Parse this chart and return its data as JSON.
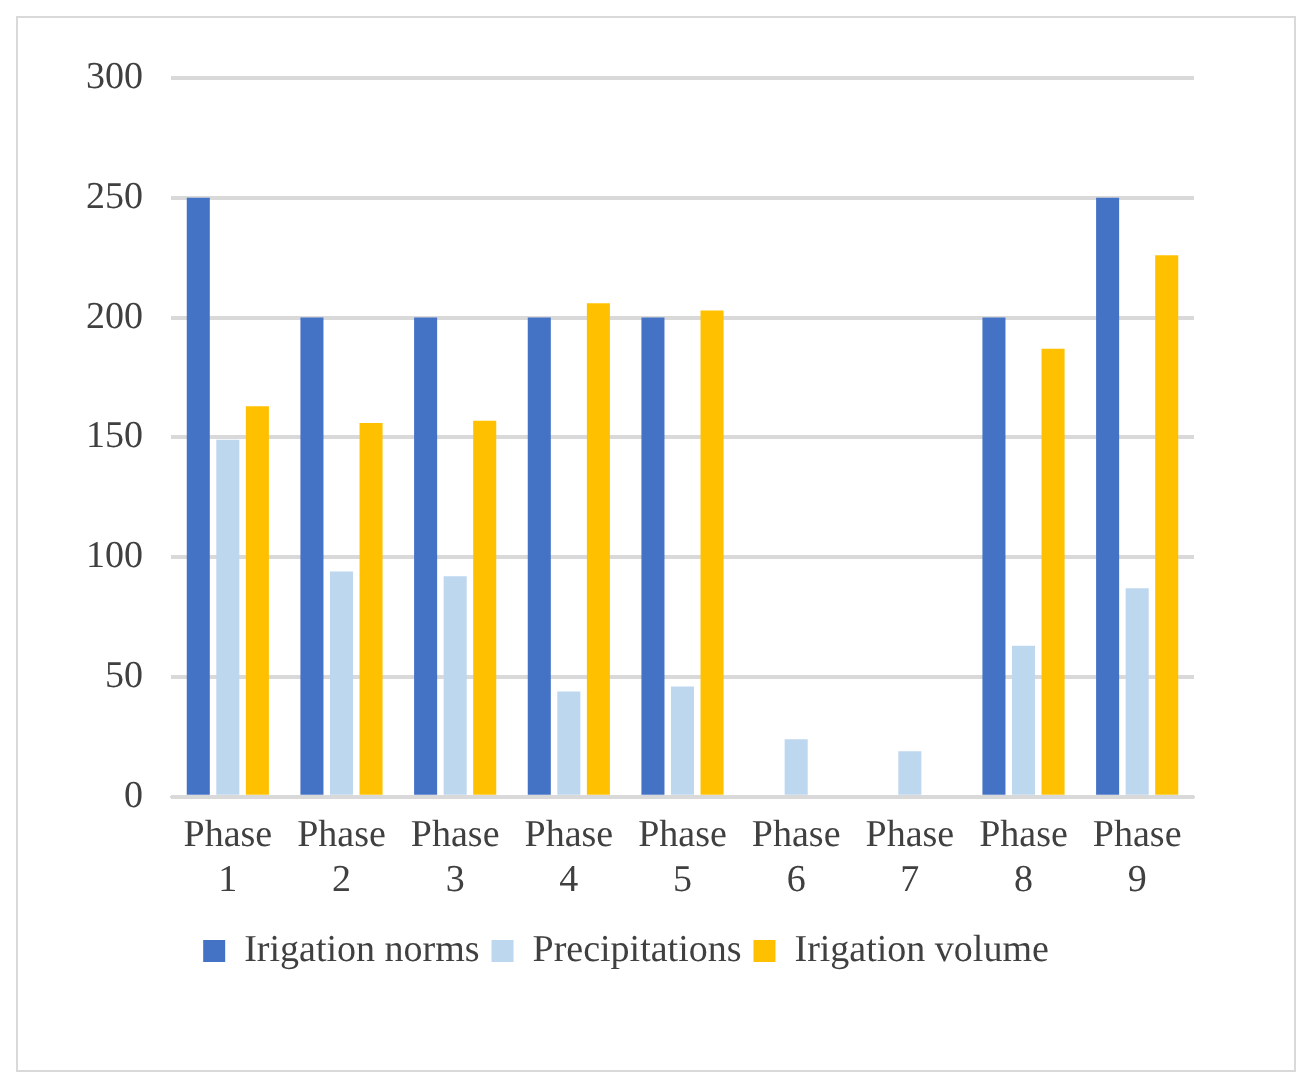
{
  "chart_data": {
    "type": "bar",
    "categories": [
      "Phase 1",
      "Phase 2",
      "Phase 3",
      "Phase 4",
      "Phase 5",
      "Phase 6",
      "Phase 7",
      "Phase 8",
      "Phase 9"
    ],
    "series": [
      {
        "name": "Irigation norms",
        "color": "#4472c4",
        "values": [
          250,
          200,
          200,
          200,
          200,
          null,
          null,
          200,
          250
        ]
      },
      {
        "name": "Precipitations",
        "color": "#bdd7ee",
        "values": [
          149,
          94,
          92,
          44,
          46,
          24,
          19,
          63,
          87
        ]
      },
      {
        "name": "Irigation volume",
        "color": "#ffc000",
        "values": [
          163,
          156,
          157,
          206,
          203,
          null,
          null,
          187,
          226
        ]
      }
    ],
    "ylim": [
      0,
      300
    ],
    "yticks": [
      0,
      50,
      100,
      150,
      200,
      250,
      300
    ],
    "grid": "y",
    "legend": "bottom"
  }
}
